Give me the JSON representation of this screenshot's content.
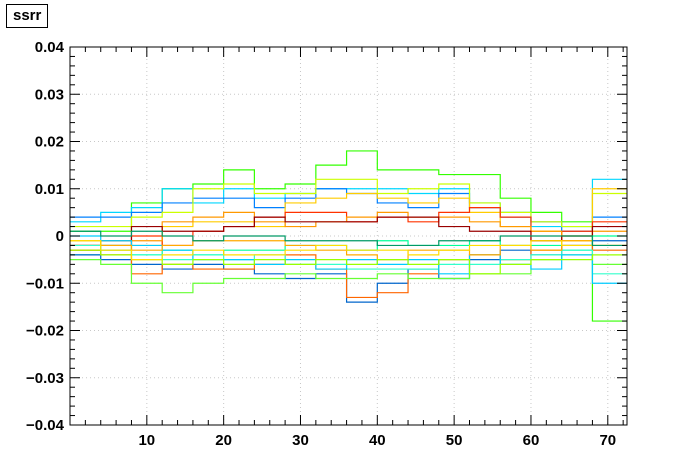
{
  "chart_data": {
    "type": "line",
    "title": "ssrr",
    "xlabel": "",
    "ylabel": "",
    "xlim": [
      0,
      72.5
    ],
    "ylim": [
      -0.04,
      0.04
    ],
    "grid": true,
    "legend": "none",
    "x_ticks": [
      10,
      20,
      30,
      40,
      50,
      60,
      70
    ],
    "y_ticks": [
      -0.04,
      -0.03,
      -0.02,
      -0.01,
      0,
      0.01,
      0.02,
      0.03,
      0.04
    ],
    "y_tick_labels": [
      "−0.04",
      "−0.03",
      "−0.02",
      "−0.01",
      "0",
      "0.01",
      "0.02",
      "0.03",
      "0.04"
    ],
    "x_tick_labels": [
      "10",
      "20",
      "30",
      "40",
      "50",
      "60",
      "70"
    ],
    "bin_edges": [
      0,
      4,
      8,
      12,
      16,
      20,
      24,
      28,
      32,
      36,
      40,
      44,
      48,
      52,
      56,
      60,
      64,
      68,
      72.5
    ],
    "series": [
      {
        "color": "#33ff00",
        "values": [
          0.001,
          0.001,
          0.007,
          0.01,
          0.011,
          0.014,
          0.01,
          0.011,
          0.015,
          0.018,
          0.014,
          0.014,
          0.013,
          0.013,
          0.008,
          0.005,
          0.003,
          -0.018
        ]
      },
      {
        "color": "#00d7ff",
        "values": [
          0.003,
          0.005,
          0.006,
          0.01,
          0.007,
          0.01,
          0.008,
          0.009,
          0.01,
          0.01,
          0.01,
          0.009,
          0.01,
          0.007,
          0.005,
          0.002,
          0.002,
          0.012
        ]
      },
      {
        "color": "#0080ff",
        "values": [
          0.004,
          0.004,
          0.005,
          0.007,
          0.008,
          0.008,
          0.006,
          0.008,
          0.01,
          0.009,
          0.007,
          0.006,
          0.009,
          0.006,
          0.004,
          0.003,
          0.001,
          0.004
        ]
      },
      {
        "color": "#ccff00",
        "values": [
          0.002,
          0.002,
          0.004,
          0.005,
          0.01,
          0.011,
          0.009,
          0.009,
          0.012,
          0.012,
          0.009,
          0.01,
          0.011,
          0.007,
          0.005,
          0.003,
          0.002,
          0.009
        ]
      },
      {
        "color": "#ffcc00",
        "values": [
          -0.002,
          -0.001,
          -0.002,
          0.002,
          0.003,
          0.003,
          0.002,
          0.007,
          0.008,
          0.009,
          0.008,
          0.007,
          0.008,
          0.005,
          0.002,
          0.001,
          -0.001,
          0.01
        ]
      },
      {
        "color": "#ff3300",
        "values": [
          -0.002,
          -0.001,
          0.0,
          -0.002,
          0.001,
          0.002,
          0.004,
          0.005,
          0.005,
          0.003,
          0.004,
          0.003,
          0.005,
          0.006,
          0.004,
          -0.001,
          0.001,
          0.003
        ]
      },
      {
        "color": "#ff9900",
        "values": [
          -0.003,
          -0.003,
          -0.001,
          0.003,
          0.004,
          0.005,
          0.003,
          0.002,
          0.003,
          0.004,
          0.005,
          0.004,
          0.004,
          0.003,
          0.002,
          0.001,
          0.0,
          0.001
        ]
      },
      {
        "color": "#990000",
        "values": [
          -0.002,
          -0.002,
          0.002,
          0.001,
          0.001,
          0.002,
          0.004,
          0.003,
          0.003,
          0.003,
          0.004,
          0.004,
          0.002,
          0.001,
          0.001,
          -0.001,
          0.0,
          0.002
        ]
      },
      {
        "color": "#00ff99",
        "values": [
          -0.004,
          -0.002,
          -0.004,
          -0.003,
          -0.004,
          -0.003,
          -0.003,
          -0.002,
          -0.002,
          -0.003,
          -0.001,
          -0.002,
          -0.002,
          -0.001,
          -0.002,
          -0.002,
          -0.003,
          0.0
        ]
      },
      {
        "color": "#0066cc",
        "values": [
          -0.004,
          -0.005,
          -0.006,
          -0.007,
          -0.006,
          -0.007,
          -0.008,
          -0.009,
          -0.008,
          -0.014,
          -0.01,
          -0.007,
          -0.009,
          -0.005,
          -0.003,
          -0.004,
          -0.002,
          -0.001
        ]
      },
      {
        "color": "#ff6600",
        "values": [
          -0.003,
          -0.004,
          -0.008,
          -0.006,
          -0.007,
          -0.007,
          -0.006,
          -0.004,
          -0.007,
          -0.013,
          -0.012,
          -0.008,
          -0.005,
          -0.004,
          -0.005,
          -0.003,
          -0.002,
          -0.003
        ]
      },
      {
        "color": "#66ff33",
        "values": [
          -0.005,
          -0.006,
          -0.01,
          -0.012,
          -0.01,
          -0.009,
          -0.009,
          -0.008,
          -0.009,
          -0.009,
          -0.008,
          -0.009,
          -0.009,
          -0.008,
          -0.008,
          -0.005,
          -0.004,
          -0.006
        ]
      },
      {
        "color": "#33ffcc",
        "values": [
          -0.002,
          -0.003,
          -0.004,
          -0.005,
          -0.004,
          -0.005,
          -0.004,
          -0.006,
          -0.006,
          -0.007,
          -0.007,
          -0.007,
          -0.006,
          -0.006,
          -0.005,
          -0.004,
          -0.003,
          -0.008
        ]
      },
      {
        "color": "#00ccff",
        "values": [
          0.0,
          -0.001,
          -0.002,
          -0.003,
          -0.005,
          -0.005,
          -0.006,
          -0.005,
          -0.007,
          -0.005,
          -0.006,
          -0.005,
          -0.008,
          -0.004,
          -0.006,
          -0.007,
          -0.004,
          -0.01
        ]
      },
      {
        "color": "#ffaa00",
        "values": [
          -0.001,
          -0.002,
          -0.003,
          -0.002,
          -0.001,
          -0.001,
          -0.001,
          -0.002,
          -0.003,
          -0.004,
          -0.005,
          -0.003,
          -0.003,
          -0.004,
          -0.002,
          -0.003,
          -0.001,
          -0.002
        ]
      },
      {
        "color": "#99ff00",
        "values": [
          -0.003,
          -0.004,
          -0.005,
          -0.006,
          -0.005,
          -0.006,
          -0.005,
          -0.006,
          -0.005,
          -0.006,
          -0.005,
          -0.006,
          -0.005,
          -0.008,
          -0.006,
          -0.005,
          -0.005,
          -0.004
        ]
      },
      {
        "color": "#ffdd00",
        "values": [
          -0.001,
          -0.003,
          -0.005,
          -0.004,
          -0.003,
          -0.004,
          -0.004,
          -0.003,
          -0.002,
          -0.003,
          -0.003,
          -0.004,
          -0.003,
          -0.002,
          -0.002,
          -0.001,
          -0.002,
          -0.002
        ]
      },
      {
        "color": "#009966",
        "values": [
          0.001,
          0.0,
          0.001,
          0.0,
          -0.001,
          0.0,
          0.0,
          -0.001,
          -0.001,
          -0.001,
          -0.002,
          -0.002,
          -0.001,
          -0.001,
          0.0,
          0.0,
          0.0,
          -0.002
        ]
      }
    ]
  }
}
